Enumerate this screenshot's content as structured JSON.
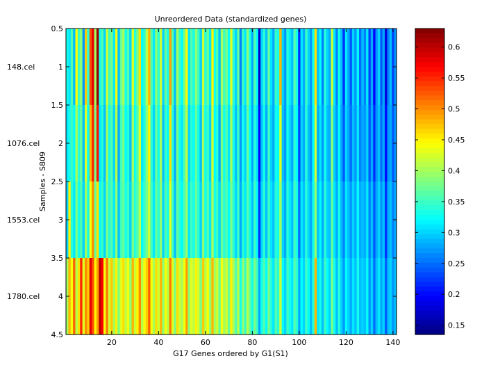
{
  "chart_data": {
    "type": "heatmap",
    "title": "Unreordered Data (standardized genes)",
    "xlabel": "G17 Genes ordered by G1(S1)",
    "ylabel": "Samples - S809",
    "xlim": [
      0.5,
      141.5
    ],
    "ylim": [
      0.5,
      4.5
    ],
    "y_reversed": true,
    "x_ticks": [
      20,
      40,
      60,
      80,
      100,
      120,
      140
    ],
    "y_ticks": [
      0.5,
      1,
      1.5,
      2,
      2.5,
      3,
      3.5,
      4,
      4.5
    ],
    "y_tick_labels": [
      "0.5",
      "1",
      "1.5",
      "2",
      "2.5",
      "3",
      "3.5",
      "4",
      "4.5"
    ],
    "row_labels": [
      "148.cel",
      "1076.cel",
      "1553.cel",
      "1780.cel"
    ],
    "n_columns": 141,
    "colormap": "jet",
    "clim": [
      0.135,
      0.63
    ],
    "colorbar_ticks": [
      0.15,
      0.2,
      0.25,
      0.3,
      0.35,
      0.4,
      0.45,
      0.5,
      0.55,
      0.6
    ],
    "colorbar_tick_labels": [
      "0.15",
      "0.2",
      "0.25",
      "0.3",
      "0.35",
      "0.4",
      "0.45",
      "0.5",
      "0.55",
      "0.6"
    ],
    "rows": [
      [
        0.33,
        0.31,
        0.36,
        0.29,
        0.44,
        0.35,
        0.39,
        0.27,
        0.47,
        0.34,
        0.53,
        0.58,
        0.4,
        0.62,
        0.33,
        0.36,
        0.3,
        0.42,
        0.35,
        0.38,
        0.31,
        0.44,
        0.29,
        0.37,
        0.4,
        0.33,
        0.36,
        0.3,
        0.43,
        0.34,
        0.38,
        0.46,
        0.32,
        0.35,
        0.41,
        0.48,
        0.36,
        0.31,
        0.39,
        0.34,
        0.42,
        0.3,
        0.37,
        0.33,
        0.49,
        0.36,
        0.29,
        0.4,
        0.35,
        0.32,
        0.38,
        0.44,
        0.31,
        0.36,
        0.33,
        0.39,
        0.35,
        0.3,
        0.42,
        0.34,
        0.37,
        0.31,
        0.45,
        0.33,
        0.36,
        0.29,
        0.4,
        0.35,
        0.38,
        0.32,
        0.43,
        0.34,
        0.3,
        0.37,
        0.26,
        0.35,
        0.31,
        0.39,
        0.33,
        0.28,
        0.36,
        0.32,
        0.17,
        0.3,
        0.34,
        0.29,
        0.37,
        0.31,
        0.28,
        0.35,
        0.33,
        0.48,
        0.3,
        0.27,
        0.34,
        0.31,
        0.29,
        0.36,
        0.33,
        0.22,
        0.31,
        0.28,
        0.35,
        0.3,
        0.27,
        0.33,
        0.46,
        0.29,
        0.32,
        0.26,
        0.34,
        0.3,
        0.28,
        0.42,
        0.31,
        0.26,
        0.33,
        0.29,
        0.22,
        0.31,
        0.28,
        0.24,
        0.3,
        0.27,
        0.32,
        0.25,
        0.29,
        0.26,
        0.31,
        0.23,
        0.28,
        0.2,
        0.27,
        0.3,
        0.24,
        0.28,
        0.18,
        0.26,
        0.29,
        0.23,
        0.27
      ],
      [
        0.31,
        0.33,
        0.35,
        0.32,
        0.4,
        0.34,
        0.37,
        0.29,
        0.43,
        0.32,
        0.48,
        0.55,
        0.38,
        0.56,
        0.31,
        0.34,
        0.29,
        0.4,
        0.33,
        0.36,
        0.3,
        0.41,
        0.28,
        0.35,
        0.38,
        0.32,
        0.34,
        0.29,
        0.4,
        0.33,
        0.36,
        0.43,
        0.31,
        0.34,
        0.39,
        0.45,
        0.34,
        0.3,
        0.37,
        0.33,
        0.4,
        0.29,
        0.35,
        0.32,
        0.46,
        0.34,
        0.28,
        0.38,
        0.33,
        0.31,
        0.36,
        0.41,
        0.3,
        0.34,
        0.32,
        0.37,
        0.33,
        0.29,
        0.4,
        0.33,
        0.35,
        0.3,
        0.42,
        0.32,
        0.34,
        0.28,
        0.38,
        0.33,
        0.36,
        0.31,
        0.4,
        0.33,
        0.29,
        0.35,
        0.27,
        0.33,
        0.3,
        0.37,
        0.32,
        0.28,
        0.34,
        0.31,
        0.2,
        0.29,
        0.33,
        0.28,
        0.35,
        0.3,
        0.28,
        0.33,
        0.32,
        0.43,
        0.29,
        0.27,
        0.33,
        0.3,
        0.28,
        0.34,
        0.32,
        0.23,
        0.3,
        0.28,
        0.34,
        0.29,
        0.27,
        0.32,
        0.42,
        0.28,
        0.31,
        0.27,
        0.33,
        0.29,
        0.28,
        0.39,
        0.3,
        0.27,
        0.32,
        0.28,
        0.24,
        0.3,
        0.28,
        0.25,
        0.29,
        0.27,
        0.31,
        0.26,
        0.28,
        0.27,
        0.3,
        0.24,
        0.28,
        0.22,
        0.27,
        0.29,
        0.25,
        0.28,
        0.2,
        0.27,
        0.28,
        0.24,
        0.27
      ],
      [
        0.3,
        0.45,
        0.34,
        0.31,
        0.38,
        0.33,
        0.36,
        0.3,
        0.4,
        0.33,
        0.44,
        0.5,
        0.37,
        0.46,
        0.32,
        0.35,
        0.3,
        0.38,
        0.34,
        0.36,
        0.31,
        0.39,
        0.29,
        0.35,
        0.37,
        0.33,
        0.35,
        0.3,
        0.38,
        0.34,
        0.36,
        0.41,
        0.32,
        0.35,
        0.38,
        0.42,
        0.35,
        0.31,
        0.37,
        0.34,
        0.39,
        0.3,
        0.36,
        0.33,
        0.43,
        0.35,
        0.29,
        0.37,
        0.34,
        0.32,
        0.36,
        0.39,
        0.31,
        0.35,
        0.33,
        0.37,
        0.34,
        0.3,
        0.39,
        0.33,
        0.36,
        0.31,
        0.4,
        0.33,
        0.35,
        0.3,
        0.37,
        0.34,
        0.36,
        0.32,
        0.38,
        0.34,
        0.3,
        0.35,
        0.28,
        0.34,
        0.31,
        0.36,
        0.33,
        0.29,
        0.35,
        0.32,
        0.22,
        0.3,
        0.34,
        0.29,
        0.35,
        0.31,
        0.29,
        0.34,
        0.33,
        0.4,
        0.3,
        0.28,
        0.34,
        0.31,
        0.29,
        0.35,
        0.33,
        0.25,
        0.31,
        0.29,
        0.34,
        0.3,
        0.28,
        0.33,
        0.39,
        0.29,
        0.32,
        0.28,
        0.34,
        0.3,
        0.29,
        0.37,
        0.31,
        0.28,
        0.33,
        0.29,
        0.26,
        0.31,
        0.29,
        0.27,
        0.3,
        0.28,
        0.32,
        0.28,
        0.29,
        0.28,
        0.31,
        0.26,
        0.29,
        0.24,
        0.28,
        0.3,
        0.27,
        0.29,
        0.22,
        0.28,
        0.29,
        0.26,
        0.28
      ],
      [
        0.4,
        0.48,
        0.44,
        0.52,
        0.41,
        0.46,
        0.55,
        0.43,
        0.5,
        0.47,
        0.58,
        0.53,
        0.45,
        0.49,
        0.6,
        0.57,
        0.44,
        0.51,
        0.42,
        0.47,
        0.4,
        0.45,
        0.38,
        0.43,
        0.46,
        0.41,
        0.44,
        0.39,
        0.48,
        0.42,
        0.45,
        0.5,
        0.41,
        0.44,
        0.47,
        0.52,
        0.44,
        0.4,
        0.46,
        0.42,
        0.48,
        0.39,
        0.44,
        0.41,
        0.51,
        0.43,
        0.38,
        0.46,
        0.42,
        0.4,
        0.44,
        0.49,
        0.39,
        0.43,
        0.41,
        0.45,
        0.42,
        0.38,
        0.47,
        0.41,
        0.44,
        0.39,
        0.48,
        0.4,
        0.42,
        0.37,
        0.44,
        0.4,
        0.42,
        0.37,
        0.45,
        0.4,
        0.36,
        0.41,
        0.33,
        0.39,
        0.35,
        0.41,
        0.37,
        0.33,
        0.38,
        0.35,
        0.28,
        0.33,
        0.36,
        0.32,
        0.38,
        0.34,
        0.31,
        0.36,
        0.34,
        0.42,
        0.32,
        0.3,
        0.35,
        0.33,
        0.31,
        0.36,
        0.34,
        0.28,
        0.32,
        0.3,
        0.35,
        0.32,
        0.29,
        0.34,
        0.48,
        0.31,
        0.33,
        0.29,
        0.35,
        0.32,
        0.3,
        0.38,
        0.33,
        0.29,
        0.34,
        0.3,
        0.27,
        0.32,
        0.3,
        0.28,
        0.31,
        0.29,
        0.33,
        0.29,
        0.3,
        0.29,
        0.32,
        0.27,
        0.3,
        0.25,
        0.29,
        0.31,
        0.28,
        0.3,
        0.24,
        0.29,
        0.3,
        0.27,
        0.29
      ]
    ]
  }
}
